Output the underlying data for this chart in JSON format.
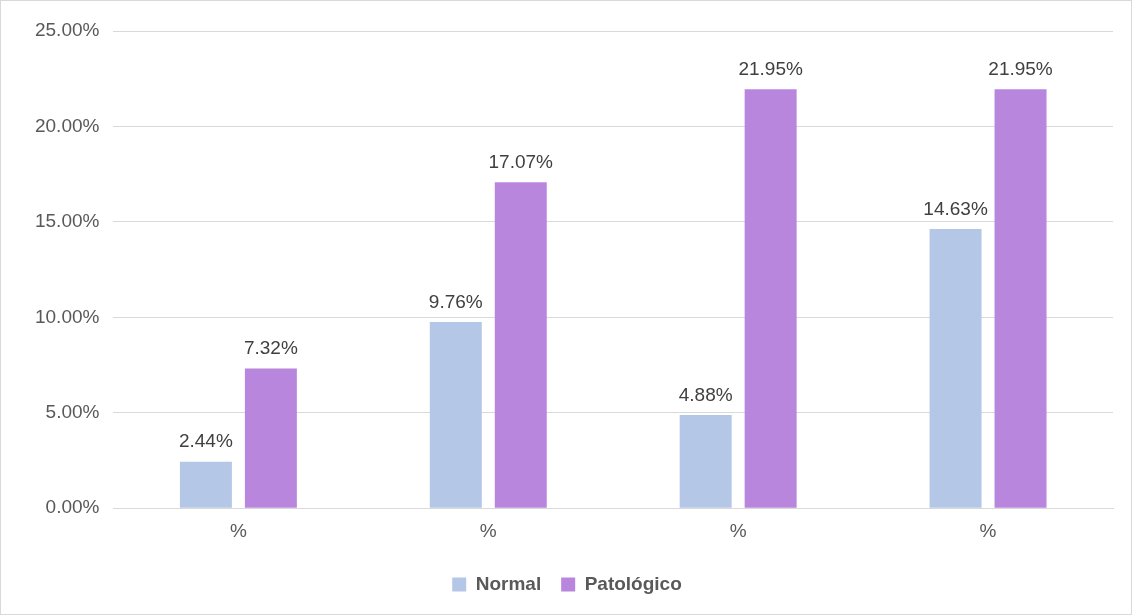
{
  "chart_data": {
    "type": "bar",
    "categories": [
      "%",
      "%",
      "%",
      "%"
    ],
    "series": [
      {
        "name": "Normal",
        "color": "#b4c7e7",
        "values": [
          2.44,
          9.76,
          4.88,
          14.63
        ],
        "value_labels": [
          "2.44%",
          "9.76%",
          "4.88%",
          "14.63%"
        ]
      },
      {
        "name": "Patológico",
        "color": "#b886dc",
        "values": [
          7.32,
          17.07,
          21.95,
          21.95
        ],
        "value_labels": [
          "7.32%",
          "17.07%",
          "21.95%",
          "21.95%"
        ]
      }
    ],
    "ylim": [
      0,
      25
    ],
    "yticks": [
      {
        "value": 0,
        "label": "0.00%"
      },
      {
        "value": 5,
        "label": "5.00%"
      },
      {
        "value": 10,
        "label": "10.00%"
      },
      {
        "value": 15,
        "label": "15.00%"
      },
      {
        "value": 20,
        "label": "20.00%"
      },
      {
        "value": 25,
        "label": "25.00%"
      }
    ],
    "grid": "y",
    "legend": "bottom"
  }
}
